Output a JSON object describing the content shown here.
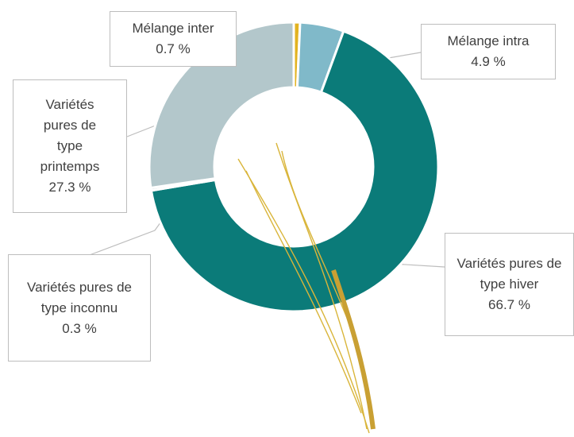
{
  "chart_data": {
    "type": "donut",
    "categories": [
      "Mélange inter",
      "Mélange intra",
      "Variétés pures de type hiver",
      "Variétés pures de type inconnu",
      "Variétés pures de type printemps"
    ],
    "values": [
      0.7,
      4.9,
      66.7,
      0.3,
      27.3
    ],
    "value_labels": [
      "0.7 %",
      "4.9 %",
      "66.7 %",
      "0.3 %",
      "27.3 %"
    ],
    "colors": [
      "#e2b321",
      "#80b9c9",
      "#0b7b79",
      "#c9d3d6",
      "#b3c7cb"
    ]
  }
}
